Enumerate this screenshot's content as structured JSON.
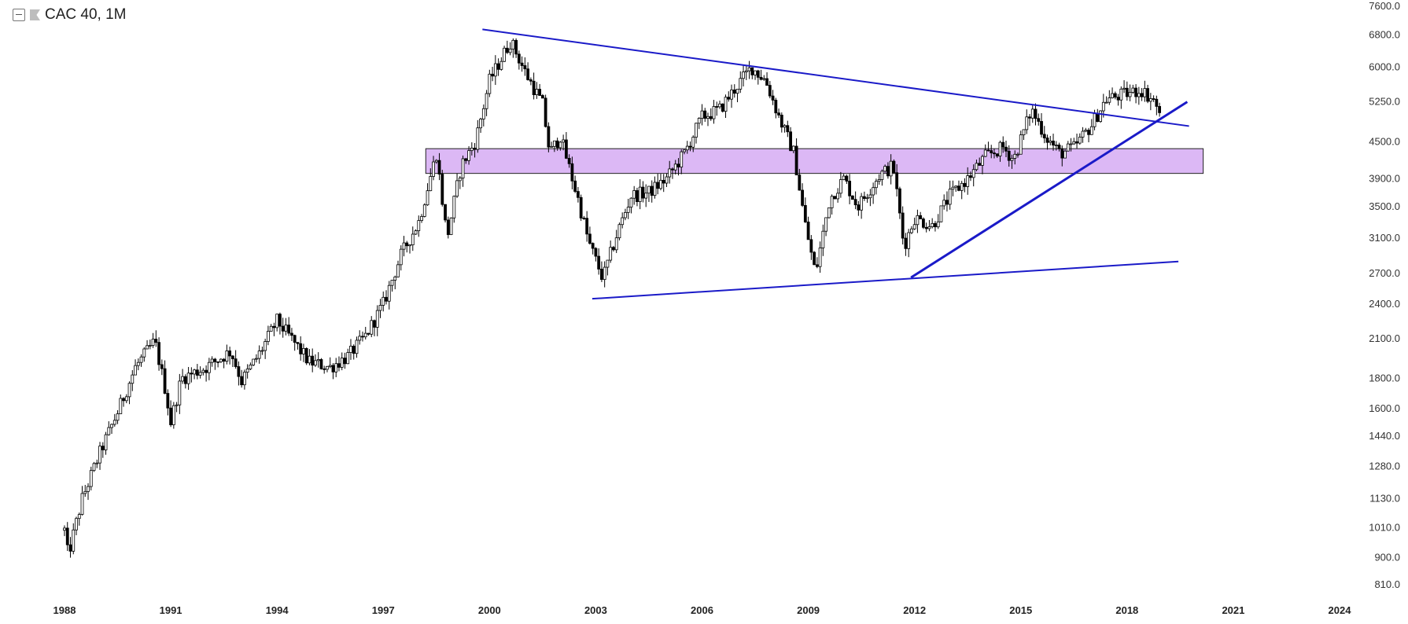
{
  "legend": {
    "symbol": "CAC 40, 1M"
  },
  "colors": {
    "line": "#1a1ac8",
    "zone_fill": "#dcb8f5",
    "zone_stroke": "#222222",
    "candle": "#000000"
  },
  "icons": {
    "collapse": "collapse-icon",
    "flag": "flag-icon"
  },
  "chart_data": {
    "type": "candlestick",
    "timeframe": "monthly",
    "x_ticks": [
      "1988",
      "1991",
      "1994",
      "1997",
      "2000",
      "2003",
      "2006",
      "2009",
      "2012",
      "2015",
      "2018",
      "2021",
      "2024"
    ],
    "y_ticks": [
      7600,
      6800,
      6000,
      5250,
      4500,
      3900,
      3500,
      3100,
      2700,
      2400,
      2100,
      1800,
      1600,
      1440,
      1280,
      1130,
      1010,
      900,
      810
    ],
    "y_scale": "log",
    "ylim": [
      810,
      7600
    ],
    "xlim": [
      1988.0,
      2024.0
    ],
    "price_path": [
      [
        1988.0,
        1000
      ],
      [
        1988.1,
        905
      ],
      [
        1988.5,
        1130
      ],
      [
        1989.0,
        1350
      ],
      [
        1989.5,
        1580
      ],
      [
        1990.0,
        1880
      ],
      [
        1990.55,
        2080
      ],
      [
        1990.85,
        1720
      ],
      [
        1991.0,
        1520
      ],
      [
        1991.3,
        1800
      ],
      [
        1992.0,
        1880
      ],
      [
        1992.7,
        2000
      ],
      [
        1993.0,
        1780
      ],
      [
        1993.5,
        1980
      ],
      [
        1994.0,
        2250
      ],
      [
        1994.4,
        2100
      ],
      [
        1994.9,
        1920
      ],
      [
        1995.5,
        1880
      ],
      [
        1996.0,
        1960
      ],
      [
        1996.5,
        2120
      ],
      [
        1997.0,
        2400
      ],
      [
        1997.5,
        2900
      ],
      [
        1998.0,
        3300
      ],
      [
        1998.5,
        4300
      ],
      [
        1998.8,
        3100
      ],
      [
        1999.2,
        4100
      ],
      [
        1999.6,
        4500
      ],
      [
        2000.0,
        5700
      ],
      [
        2000.6,
        6650
      ],
      [
        2001.0,
        5900
      ],
      [
        2001.5,
        5200
      ],
      [
        2001.7,
        4300
      ],
      [
        2002.0,
        4600
      ],
      [
        2002.5,
        3600
      ],
      [
        2002.8,
        3050
      ],
      [
        2003.2,
        2650
      ],
      [
        2003.6,
        3150
      ],
      [
        2004.0,
        3650
      ],
      [
        2004.5,
        3700
      ],
      [
        2005.0,
        3900
      ],
      [
        2005.5,
        4300
      ],
      [
        2006.0,
        4950
      ],
      [
        2006.5,
        5100
      ],
      [
        2007.0,
        5600
      ],
      [
        2007.4,
        6000
      ],
      [
        2007.8,
        5700
      ],
      [
        2008.2,
        4900
      ],
      [
        2008.6,
        4300
      ],
      [
        2008.9,
        3300
      ],
      [
        2009.2,
        2700
      ],
      [
        2009.6,
        3600
      ],
      [
        2010.0,
        3900
      ],
      [
        2010.4,
        3500
      ],
      [
        2011.0,
        3950
      ],
      [
        2011.4,
        4100
      ],
      [
        2011.7,
        3000
      ],
      [
        2012.0,
        3350
      ],
      [
        2012.5,
        3250
      ],
      [
        2013.0,
        3650
      ],
      [
        2013.5,
        3900
      ],
      [
        2014.0,
        4250
      ],
      [
        2014.5,
        4400
      ],
      [
        2014.8,
        4200
      ],
      [
        2015.3,
        5100
      ],
      [
        2015.7,
        4600
      ],
      [
        2016.1,
        4300
      ],
      [
        2016.5,
        4400
      ],
      [
        2017.0,
        4800
      ],
      [
        2017.4,
        5300
      ],
      [
        2017.9,
        5400
      ],
      [
        2018.4,
        5500
      ],
      [
        2018.8,
        5250
      ],
      [
        2018.98,
        4800
      ]
    ],
    "drawings": [
      {
        "name": "upper-resistance-trendline",
        "from": [
          1999.8,
          6950
        ],
        "to": [
          2019.75,
          4780
        ]
      },
      {
        "name": "lower-support-trendline",
        "from": [
          2002.9,
          2450
        ],
        "to": [
          2019.45,
          2830
        ]
      },
      {
        "name": "rising-support-trendline",
        "from": [
          2011.9,
          2660
        ],
        "to": [
          2019.7,
          5250
        ]
      }
    ],
    "zones": [
      {
        "name": "support-resistance-zone",
        "x_from": 1998.2,
        "x_to": 2020.15,
        "y_from": 3980,
        "y_to": 4380
      }
    ]
  }
}
